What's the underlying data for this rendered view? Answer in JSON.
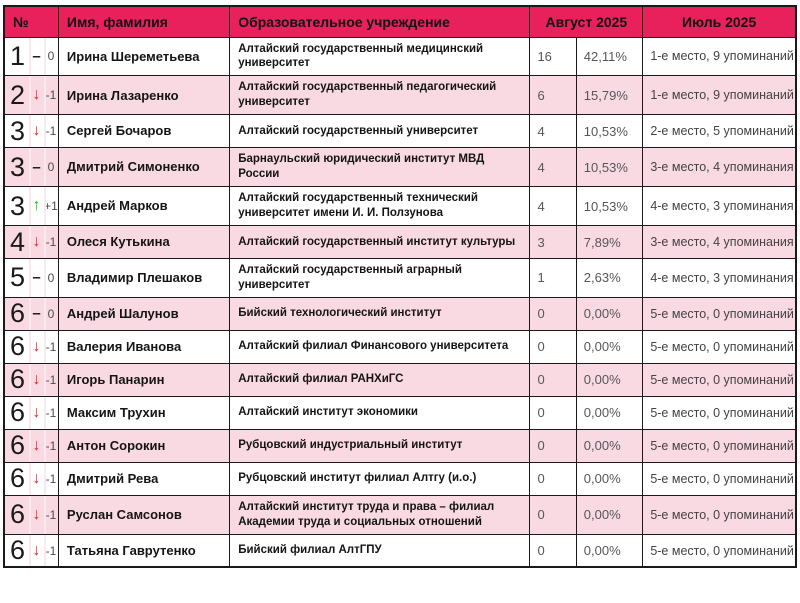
{
  "colors": {
    "header_bg": "#e8215c",
    "row_alt_bg": "#f9d9e2",
    "border": "#1a1a1a",
    "arrow_down": "#ed1c24",
    "arrow_up": "#00ca11"
  },
  "table": {
    "headers": {
      "rank": "№",
      "name": "Имя, фамилия",
      "institution": "Образовательное учреждение",
      "august": "Август 2025",
      "july": "Июль 2025"
    },
    "rows": [
      {
        "rank": "1",
        "arrow": "–",
        "change": "none",
        "delta": "0",
        "name": "Ирина Шереметьева",
        "institution": "Алтайский государственный медицинский университет",
        "count": "16",
        "percent": "42,11%",
        "july": "1-е место, 9 упоминаний"
      },
      {
        "rank": "2",
        "arrow": "↓",
        "change": "down",
        "delta": "-1",
        "name": "Ирина Лазаренко",
        "institution": "Алтайский государственный педагогический университет",
        "count": "6",
        "percent": "15,79%",
        "july": "1-е место, 9 упоминаний"
      },
      {
        "rank": "3",
        "arrow": "↓",
        "change": "down",
        "delta": "-1",
        "name": "Сергей Бочаров",
        "institution": "Алтайский государственный университет",
        "count": "4",
        "percent": "10,53%",
        "july": "2-е место, 5 упоминаний"
      },
      {
        "rank": "3",
        "arrow": "–",
        "change": "none",
        "delta": "0",
        "name": "Дмитрий Симоненко",
        "institution": "Барнаульский юридический институт МВД России",
        "count": "4",
        "percent": "10,53%",
        "july": "3-е место, 4 упоминания"
      },
      {
        "rank": "3",
        "arrow": "↑",
        "change": "up",
        "delta": "+1",
        "name": "Андрей Марков",
        "institution": "Алтайский государственный технический университет имени И. И. Ползунова",
        "count": "4",
        "percent": "10,53%",
        "july": "4-е место, 3 упоминания"
      },
      {
        "rank": "4",
        "arrow": "↓",
        "change": "down",
        "delta": "-1",
        "name": "Олеся Кутькина",
        "institution": "Алтайский государственный институт культуры",
        "count": "3",
        "percent": "7,89%",
        "july": "3-е место, 4 упоминания"
      },
      {
        "rank": "5",
        "arrow": "–",
        "change": "none",
        "delta": "0",
        "name": "Владимир Плешаков",
        "institution": "Алтайский государственный аграрный университет",
        "count": "1",
        "percent": "2,63%",
        "july": "4-е место, 3 упоминания"
      },
      {
        "rank": "6",
        "arrow": "–",
        "change": "none",
        "delta": "0",
        "name": "Андрей Шалунов",
        "institution": "Бийский технологический институт",
        "count": "0",
        "percent": "0,00%",
        "july": "5-е место, 0 упоминаний"
      },
      {
        "rank": "6",
        "arrow": "↓",
        "change": "down",
        "delta": "-1",
        "name": "Валерия Иванова",
        "institution": "Алтайский филиал Финансового университета",
        "count": "0",
        "percent": "0,00%",
        "july": "5-е место, 0 упоминаний"
      },
      {
        "rank": "6",
        "arrow": "↓",
        "change": "down",
        "delta": "-1",
        "name": "Игорь Панарин",
        "institution": "Алтайский филиал РАНХиГС",
        "count": "0",
        "percent": "0,00%",
        "july": "5-е место, 0 упоминаний"
      },
      {
        "rank": "6",
        "arrow": "↓",
        "change": "down",
        "delta": "-1",
        "name": "Максим Трухин",
        "institution": "Алтайский институт экономики",
        "count": "0",
        "percent": "0,00%",
        "july": "5-е место, 0 упоминаний"
      },
      {
        "rank": "6",
        "arrow": "↓",
        "change": "down",
        "delta": "-1",
        "name": "Антон Сорокин",
        "institution": "Рубцовский индустриальный институт",
        "count": "0",
        "percent": "0,00%",
        "july": "5-е место, 0 упоминаний"
      },
      {
        "rank": "6",
        "arrow": "↓",
        "change": "down",
        "delta": "-1",
        "name": "Дмитрий Рева",
        "institution": "Рубцовский институт филиал Алтгу (и.о.)",
        "count": "0",
        "percent": "0,00%",
        "july": "5-е место, 0 упоминаний"
      },
      {
        "rank": "6",
        "arrow": "↓",
        "change": "down",
        "delta": "-1",
        "name": "Руслан Самсонов",
        "institution": "Алтайский институт труда и права – филиал Академии труда и социальных отношений",
        "count": "0",
        "percent": "0,00%",
        "july": "5-е место, 0 упоминаний"
      },
      {
        "rank": "6",
        "arrow": "↓",
        "change": "down",
        "delta": "-1",
        "name": "Татьяна Гаврутенко",
        "institution": "Бийский филиал АлтГПУ",
        "count": "0",
        "percent": "0,00%",
        "july": "5-е место, 0 упоминаний"
      }
    ]
  }
}
